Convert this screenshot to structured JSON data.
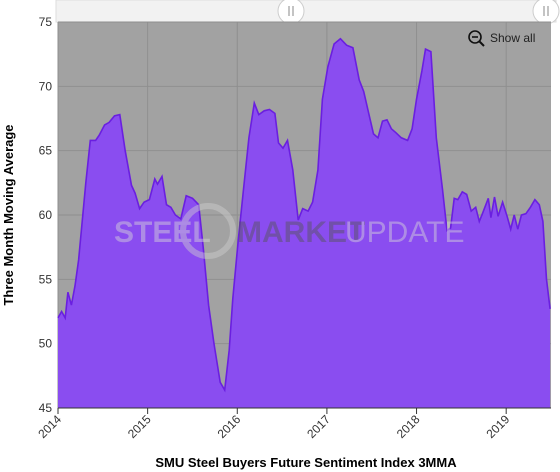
{
  "chart_data": {
    "type": "area",
    "xlabel": "SMU Steel Buyers Future Sentiment Index 3MMA",
    "ylabel": "Three Month Moving Average",
    "ylim": [
      45,
      75
    ],
    "yticks": [
      45,
      50,
      55,
      60,
      65,
      70,
      75
    ],
    "xlim": [
      2014.0,
      2019.5
    ],
    "xticks": [
      2014,
      2015,
      2016,
      2017,
      2018,
      2019
    ],
    "xtick_labels": [
      "2014",
      "2015",
      "2016",
      "2017",
      "2018",
      "2019"
    ],
    "grid": true,
    "series": [
      {
        "color": "#8a4df0",
        "line_color": "#6a1fe0",
        "points": [
          [
            2014.0,
            52.0
          ],
          [
            2014.04,
            52.5
          ],
          [
            2014.08,
            52.0
          ],
          [
            2014.11,
            54.0
          ],
          [
            2014.15,
            53.0
          ],
          [
            2014.19,
            54.5
          ],
          [
            2014.23,
            56.5
          ],
          [
            2014.27,
            59.5
          ],
          [
            2014.31,
            62.5
          ],
          [
            2014.36,
            65.8
          ],
          [
            2014.42,
            65.8
          ],
          [
            2014.46,
            66.2
          ],
          [
            2014.52,
            67.0
          ],
          [
            2014.57,
            67.2
          ],
          [
            2014.63,
            67.7
          ],
          [
            2014.69,
            67.8
          ],
          [
            2014.75,
            65.0
          ],
          [
            2014.82,
            62.3
          ],
          [
            2014.86,
            61.7
          ],
          [
            2014.91,
            60.5
          ],
          [
            2014.96,
            61.0
          ],
          [
            2015.02,
            61.2
          ],
          [
            2015.08,
            62.8
          ],
          [
            2015.11,
            62.4
          ],
          [
            2015.16,
            63.0
          ],
          [
            2015.21,
            60.8
          ],
          [
            2015.26,
            60.6
          ],
          [
            2015.31,
            60.0
          ],
          [
            2015.37,
            59.7
          ],
          [
            2015.43,
            61.5
          ],
          [
            2015.5,
            61.3
          ],
          [
            2015.57,
            60.8
          ],
          [
            2015.62,
            57.5
          ],
          [
            2015.68,
            53.0
          ],
          [
            2015.74,
            50.0
          ],
          [
            2015.81,
            47.0
          ],
          [
            2015.86,
            46.4
          ],
          [
            2015.91,
            49.5
          ],
          [
            2015.95,
            53.5
          ],
          [
            2016.01,
            58.0
          ],
          [
            2016.07,
            62.0
          ],
          [
            2016.13,
            66.0
          ],
          [
            2016.19,
            68.7
          ],
          [
            2016.24,
            67.8
          ],
          [
            2016.3,
            68.1
          ],
          [
            2016.36,
            68.2
          ],
          [
            2016.42,
            67.9
          ],
          [
            2016.46,
            65.6
          ],
          [
            2016.51,
            65.2
          ],
          [
            2016.56,
            65.8
          ],
          [
            2016.62,
            63.5
          ],
          [
            2016.68,
            59.6
          ],
          [
            2016.73,
            60.5
          ],
          [
            2016.79,
            60.3
          ],
          [
            2016.84,
            61.0
          ],
          [
            2016.9,
            63.5
          ],
          [
            2016.95,
            69.0
          ],
          [
            2017.01,
            71.5
          ],
          [
            2017.08,
            73.3
          ],
          [
            2017.15,
            73.7
          ],
          [
            2017.22,
            73.2
          ],
          [
            2017.29,
            73.0
          ],
          [
            2017.36,
            70.5
          ],
          [
            2017.41,
            69.6
          ],
          [
            2017.47,
            67.8
          ],
          [
            2017.52,
            66.3
          ],
          [
            2017.57,
            66.0
          ],
          [
            2017.62,
            67.3
          ],
          [
            2017.67,
            67.4
          ],
          [
            2017.72,
            66.7
          ],
          [
            2017.77,
            66.4
          ],
          [
            2017.83,
            66.0
          ],
          [
            2017.9,
            65.8
          ],
          [
            2017.95,
            66.7
          ],
          [
            2018.0,
            69.0
          ],
          [
            2018.06,
            71.2
          ],
          [
            2018.1,
            72.9
          ],
          [
            2018.16,
            72.7
          ],
          [
            2018.22,
            66.0
          ],
          [
            2018.29,
            62.0
          ],
          [
            2018.34,
            58.8
          ],
          [
            2018.38,
            59.0
          ],
          [
            2018.42,
            61.3
          ],
          [
            2018.46,
            61.2
          ],
          [
            2018.51,
            61.8
          ],
          [
            2018.56,
            61.6
          ],
          [
            2018.61,
            60.3
          ],
          [
            2018.66,
            60.6
          ],
          [
            2018.7,
            59.5
          ],
          [
            2018.74,
            60.2
          ],
          [
            2018.8,
            61.3
          ],
          [
            2018.83,
            59.8
          ],
          [
            2018.87,
            61.4
          ],
          [
            2018.91,
            59.9
          ],
          [
            2018.96,
            61.0
          ],
          [
            2019.01,
            59.9
          ],
          [
            2019.05,
            58.9
          ],
          [
            2019.09,
            60.0
          ],
          [
            2019.13,
            58.9
          ],
          [
            2019.17,
            60.0
          ],
          [
            2019.22,
            60.1
          ],
          [
            2019.27,
            60.6
          ],
          [
            2019.32,
            61.2
          ],
          [
            2019.37,
            60.8
          ],
          [
            2019.41,
            59.5
          ],
          [
            2019.45,
            55.0
          ],
          [
            2019.49,
            52.7
          ]
        ]
      }
    ]
  },
  "controls": {
    "show_all_label": "Show all",
    "show_all_icon": "zoom-out-icon",
    "navigator_handle_icon": "drag-handle-icon"
  },
  "watermark": {
    "text_left": "STEEL",
    "text_mid": "MARKET",
    "text_right": "UPDATE"
  },
  "colors": {
    "plot_background": "#a2a2a2",
    "gridline": "#8f8f8f",
    "area_fill": "#8a4df0",
    "area_line": "#6a1fe0"
  }
}
